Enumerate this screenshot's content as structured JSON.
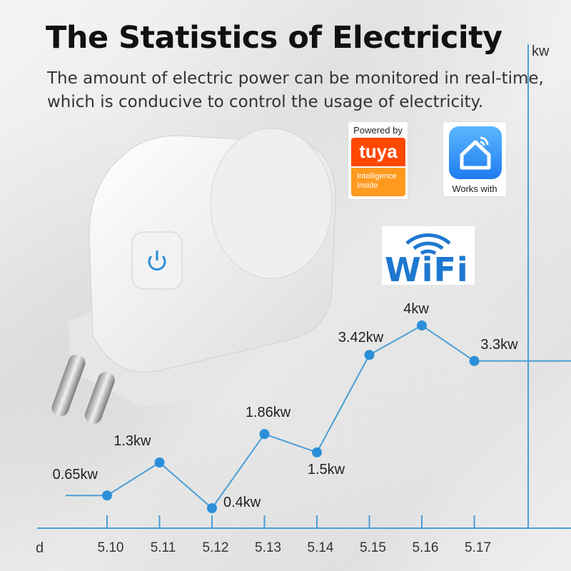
{
  "title": "The Statistics of Electricity",
  "subtitle_lines": [
    "The amount of electric power can be monitored in real-time,",
    "which is conducive to control the usage of electricity."
  ],
  "badges": {
    "tuya": {
      "powered": "Powered by",
      "logo": "tuya",
      "intel": "Intelligence Inside"
    },
    "home": {
      "works": "Works with"
    },
    "wifi": {
      "text": "WiFi"
    }
  },
  "colors": {
    "line": "#4a9ed6",
    "point": "#2a8fd8",
    "title": "#111111",
    "tuya_orange": "#ff4800"
  },
  "chart_data": {
    "type": "line",
    "title": "",
    "xlabel": "d",
    "ylabel": "kw",
    "categories": [
      "5.10",
      "5.11",
      "5.12",
      "5.13",
      "5.14",
      "5.15",
      "5.16",
      "5.17"
    ],
    "series": [
      {
        "values": [
          0.65,
          1.3,
          0.4,
          1.86,
          1.5,
          3.42,
          4,
          3.3
        ],
        "labels": [
          "0.65kw",
          "1.3kw",
          "0.4kw",
          "1.86kw",
          "1.5kw",
          "3.42kw",
          "4kw",
          "3.3kw"
        ]
      }
    ],
    "ylim": [
      0,
      8
    ],
    "grid": false,
    "legend": "none"
  }
}
